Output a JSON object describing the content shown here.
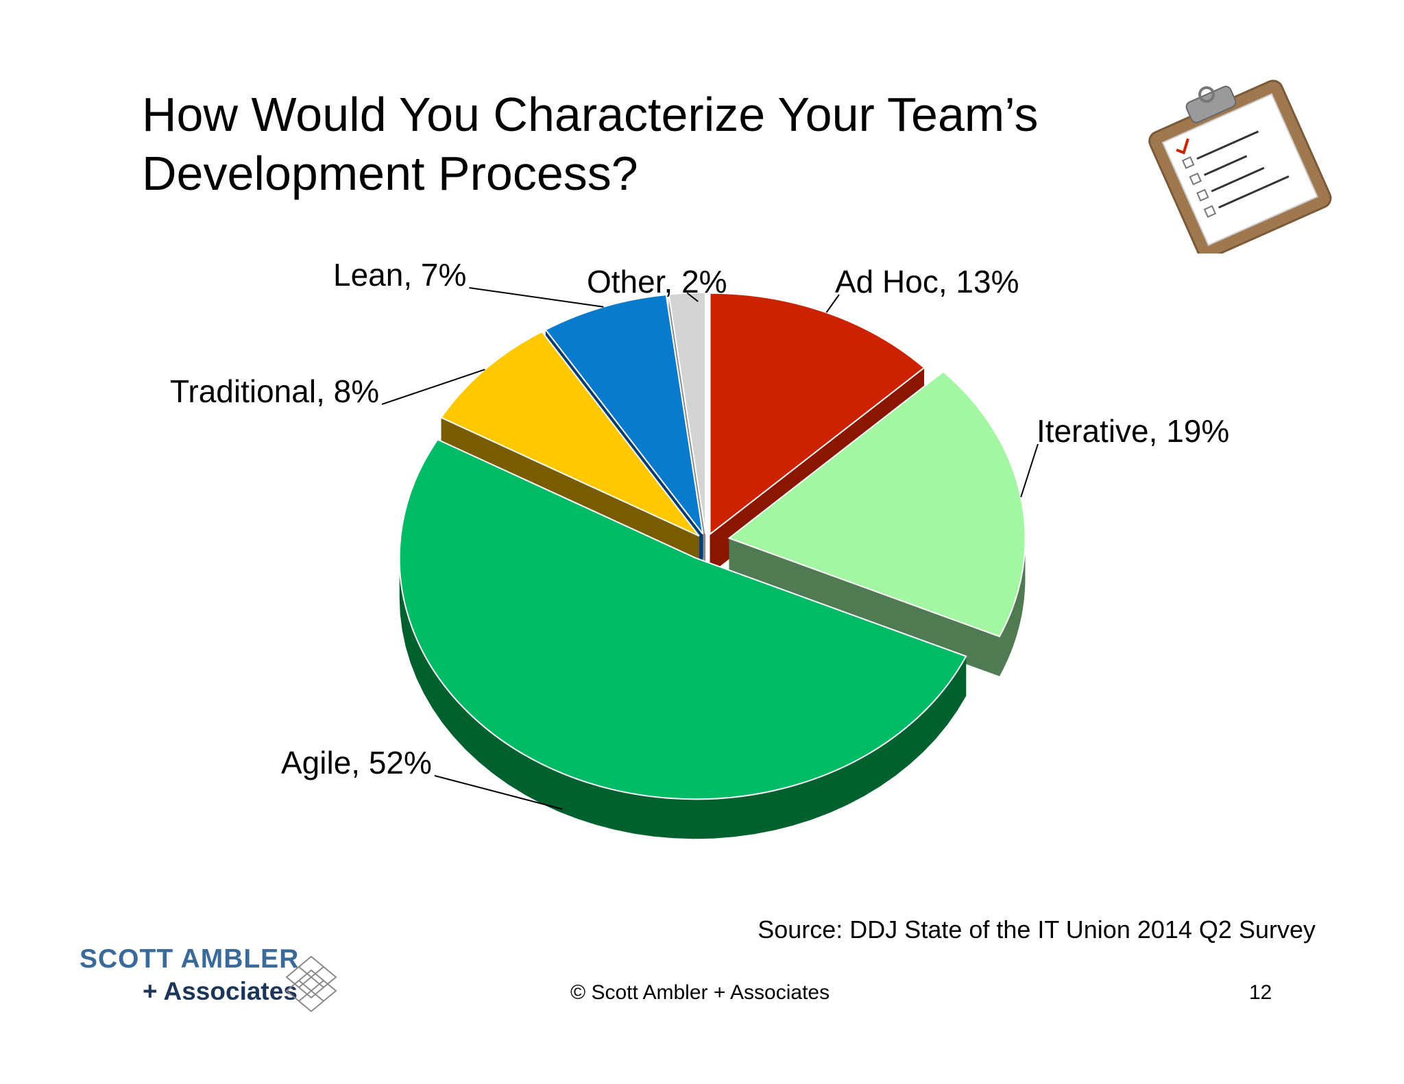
{
  "slide": {
    "title_line1": "How Would You Characterize Your Team’s",
    "title_line2": "Development Process?",
    "source": "Source: DDJ State of the IT Union 2014 Q2 Survey",
    "copyright": "© Scott Ambler + Associates",
    "page_number": "12"
  },
  "logo": {
    "line1": "SCOTT AMBLER",
    "line2": "+ Associates"
  },
  "chart_data": {
    "type": "pie",
    "categories": [
      "Ad Hoc",
      "Iterative",
      "Agile",
      "Traditional",
      "Lean",
      "Other"
    ],
    "values": [
      13,
      19,
      52,
      8,
      7,
      2
    ],
    "labels": [
      "Ad Hoc, 13%",
      "Iterative, 19%",
      "Agile, 52%",
      "Traditional, 8%",
      "Lean, 7%",
      "Other, 2%"
    ],
    "colors": [
      "#cc2200",
      "#a3f7a3",
      "#00bb66",
      "#ffc800",
      "#0a7acc",
      "#d4d4d4"
    ],
    "side_colors": [
      "#8a1600",
      "#4f7a52",
      "#00602e",
      "#7a5c00",
      "#053c70",
      "#8a8a8a"
    ],
    "style": "3d-exploded",
    "legend": "none"
  }
}
